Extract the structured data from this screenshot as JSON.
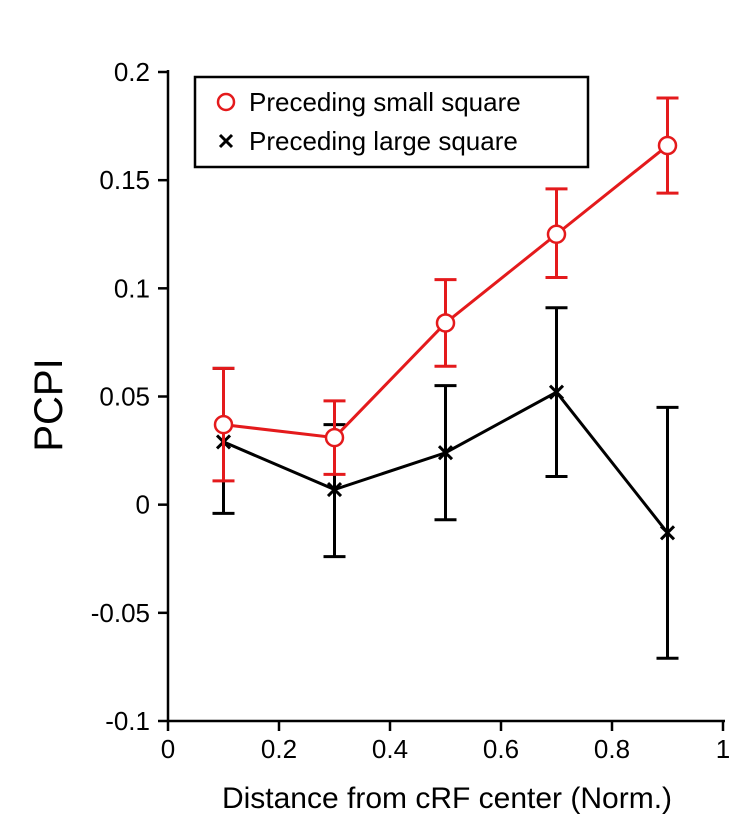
{
  "chart_data": {
    "type": "line",
    "title": "",
    "xlabel": "Distance from cRF center (Norm.)",
    "ylabel": "PCPI",
    "xlim": [
      0,
      1
    ],
    "ylim": [
      -0.1,
      0.2
    ],
    "xticks": [
      0,
      0.2,
      0.4,
      0.6,
      0.8,
      1
    ],
    "xtick_labels": [
      "0",
      "0.2",
      "0.4",
      "0.6",
      "0.8",
      "1"
    ],
    "yticks": [
      -0.1,
      -0.05,
      0,
      0.05,
      0.1,
      0.15,
      0.2
    ],
    "ytick_labels": [
      "-0.1",
      "-0.05",
      "0",
      "0.05",
      "0.1",
      "0.15",
      "0.2"
    ],
    "grid": false,
    "legend_position": "top-left",
    "x": [
      0.1,
      0.3,
      0.5,
      0.7,
      0.9
    ],
    "series": [
      {
        "name": "Preceding small square",
        "color": "#e41a1c",
        "marker": "circle",
        "values": [
          0.037,
          0.031,
          0.084,
          0.125,
          0.166
        ],
        "err_low": [
          0.026,
          0.017,
          0.02,
          0.02,
          0.022
        ],
        "err_high": [
          0.026,
          0.017,
          0.02,
          0.021,
          0.022
        ]
      },
      {
        "name": "Preceding large square",
        "color": "#000000",
        "marker": "cross",
        "values": [
          0.029,
          0.007,
          0.024,
          0.052,
          -0.013
        ],
        "err_low": [
          0.033,
          0.031,
          0.031,
          0.039,
          0.058
        ],
        "err_high": [
          0.034,
          0.03,
          0.031,
          0.039,
          0.058
        ]
      }
    ]
  }
}
